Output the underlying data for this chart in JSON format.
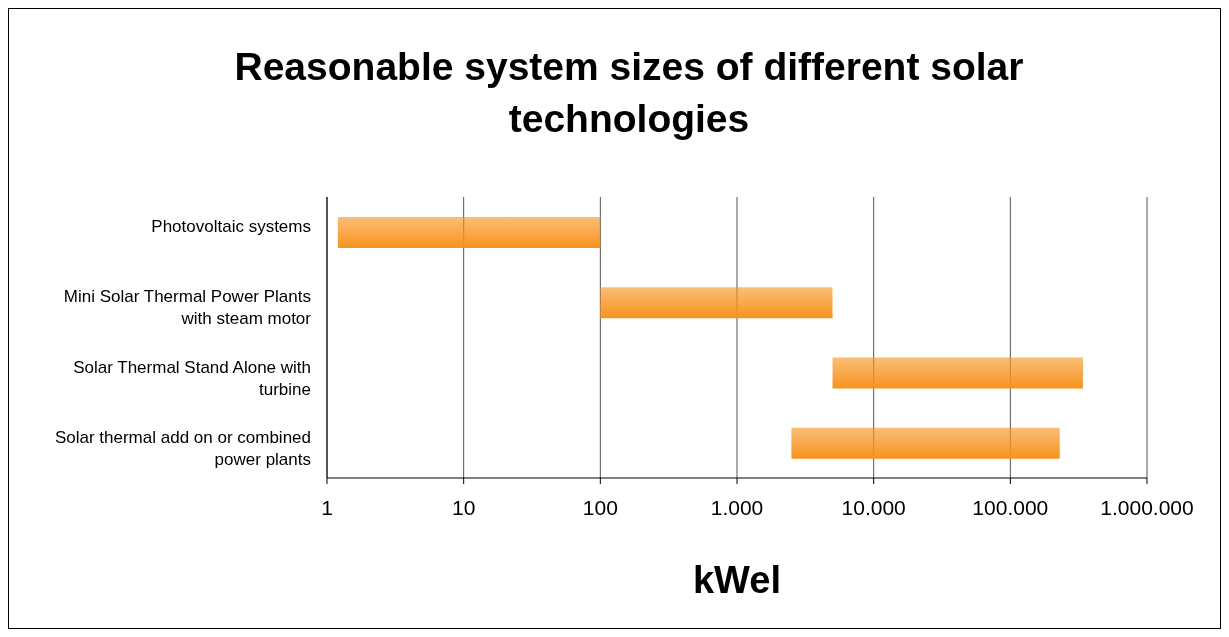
{
  "chart_data": {
    "type": "bar",
    "orientation": "horizontal",
    "title": "Reasonable system sizes of different solar technologies",
    "xlabel": "kWel",
    "categories": [
      "Photovoltaic systems",
      "Mini Solar  Thermal Power Plants with steam motor",
      "Solar Thermal Stand Alone with turbine",
      "Solar thermal add on or combined power plants"
    ],
    "base": [
      1.2,
      100,
      5000,
      2500
    ],
    "values": [
      98.8,
      4900,
      335000,
      227500
    ],
    "color": "#f7931e",
    "log": "x",
    "xlim": [
      1,
      1000000
    ],
    "xticks": [
      1,
      10,
      100,
      {
        "value": 1000,
        "label": "1.000"
      },
      {
        "value": 10000,
        "label": "10.000"
      },
      {
        "value": 100000,
        "label": "100.000"
      },
      {
        "value": 1000000,
        "label": "1.000.000"
      }
    ],
    "grid": "x"
  }
}
